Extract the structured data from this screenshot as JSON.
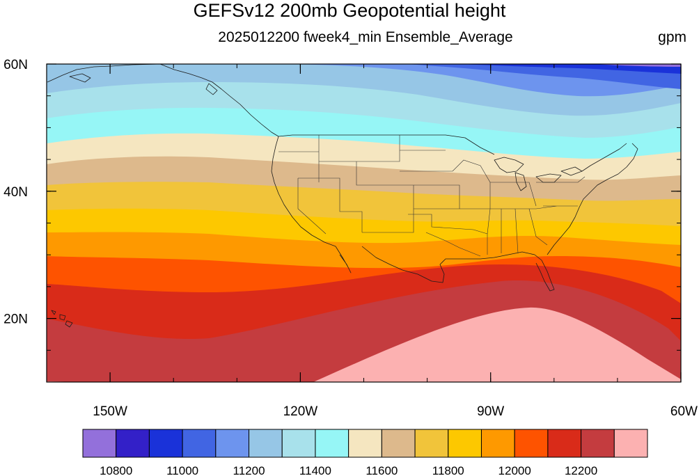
{
  "header": {
    "title": "GEFSv12 200mb Geopotential height",
    "subtitle": "2025012200 fweek4_min Ensemble_Average",
    "units": "gpm"
  },
  "map": {
    "lon_range": [
      -160,
      -60
    ],
    "lat_range": [
      10,
      60
    ],
    "lon_ticks": [
      {
        "value": -150,
        "label": "150W"
      },
      {
        "value": -120,
        "label": "120W"
      },
      {
        "value": -90,
        "label": "90W"
      },
      {
        "value": -60,
        "label": "60W"
      }
    ],
    "lat_ticks": [
      {
        "value": 60,
        "label": "60N"
      },
      {
        "value": 40,
        "label": "40N"
      },
      {
        "value": 20,
        "label": "20N"
      }
    ]
  },
  "colorbar": {
    "colors": [
      "#9370DB",
      "#3320C8",
      "#1A32D9",
      "#4165E3",
      "#6D94EE",
      "#96C6E6",
      "#A8E1EB",
      "#96F6F6",
      "#F5E6C0",
      "#DDB98C",
      "#F1C43A",
      "#FDC800",
      "#FE9900",
      "#FE5300",
      "#D92B19",
      "#C43C3F",
      "#FCB1B1"
    ],
    "labels": [
      "10800",
      "11000",
      "11200",
      "11400",
      "11600",
      "11800",
      "12000",
      "12200"
    ]
  }
}
